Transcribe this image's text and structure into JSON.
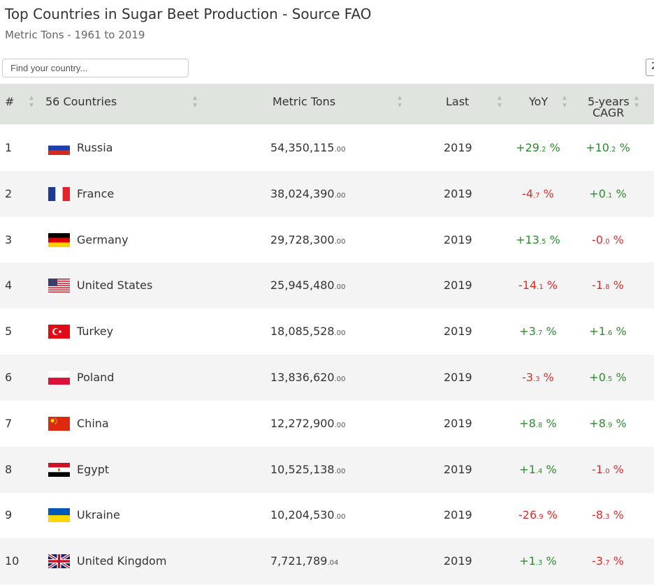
{
  "header": {
    "title": "Top Countries in Sugar Beet Production - Source FAO",
    "subtitle": "Metric Tons - 1961 to 2019"
  },
  "search": {
    "placeholder": "Find your country..."
  },
  "page_size": {
    "value": "2"
  },
  "table": {
    "columns": {
      "rank": "#",
      "country": "56 Countries",
      "tons": "Metric Tons",
      "last": "Last",
      "yoy": "YoY",
      "cagr_line1": "5-years",
      "cagr_line2": "CAGR"
    },
    "rows": [
      {
        "rank": "1",
        "country": "Russia",
        "flag": "russia-flag",
        "tons_int": "54,350,115",
        "tons_dec": ".00",
        "last": "2019",
        "yoy_int": "+29",
        "yoy_dec": ".2",
        "yoy_unit": " %",
        "yoy_sign": "pos",
        "cagr_int": "+10",
        "cagr_dec": ".2",
        "cagr_unit": " %",
        "cagr_sign": "pos"
      },
      {
        "rank": "2",
        "country": "France",
        "flag": "france-flag",
        "tons_int": "38,024,390",
        "tons_dec": ".00",
        "last": "2019",
        "yoy_int": "-4",
        "yoy_dec": ".7",
        "yoy_unit": " %",
        "yoy_sign": "neg",
        "cagr_int": "+0",
        "cagr_dec": ".1",
        "cagr_unit": " %",
        "cagr_sign": "pos"
      },
      {
        "rank": "3",
        "country": "Germany",
        "flag": "germany-flag",
        "tons_int": "29,728,300",
        "tons_dec": ".00",
        "last": "2019",
        "yoy_int": "+13",
        "yoy_dec": ".5",
        "yoy_unit": " %",
        "yoy_sign": "pos",
        "cagr_int": "-0",
        "cagr_dec": ".0",
        "cagr_unit": " %",
        "cagr_sign": "neg"
      },
      {
        "rank": "4",
        "country": "United States",
        "flag": "usa-flag",
        "tons_int": "25,945,480",
        "tons_dec": ".00",
        "last": "2019",
        "yoy_int": "-14",
        "yoy_dec": ".1",
        "yoy_unit": " %",
        "yoy_sign": "neg",
        "cagr_int": "-1",
        "cagr_dec": ".8",
        "cagr_unit": " %",
        "cagr_sign": "neg"
      },
      {
        "rank": "5",
        "country": "Turkey",
        "flag": "turkey-flag",
        "tons_int": "18,085,528",
        "tons_dec": ".00",
        "last": "2019",
        "yoy_int": "+3",
        "yoy_dec": ".7",
        "yoy_unit": " %",
        "yoy_sign": "pos",
        "cagr_int": "+1",
        "cagr_dec": ".6",
        "cagr_unit": " %",
        "cagr_sign": "pos"
      },
      {
        "rank": "6",
        "country": "Poland",
        "flag": "poland-flag",
        "tons_int": "13,836,620",
        "tons_dec": ".00",
        "last": "2019",
        "yoy_int": "-3",
        "yoy_dec": ".3",
        "yoy_unit": " %",
        "yoy_sign": "neg",
        "cagr_int": "+0",
        "cagr_dec": ".5",
        "cagr_unit": " %",
        "cagr_sign": "pos"
      },
      {
        "rank": "7",
        "country": "China",
        "flag": "china-flag",
        "tons_int": "12,272,900",
        "tons_dec": ".00",
        "last": "2019",
        "yoy_int": "+8",
        "yoy_dec": ".8",
        "yoy_unit": " %",
        "yoy_sign": "pos",
        "cagr_int": "+8",
        "cagr_dec": ".9",
        "cagr_unit": " %",
        "cagr_sign": "pos"
      },
      {
        "rank": "8",
        "country": "Egypt",
        "flag": "egypt-flag",
        "tons_int": "10,525,138",
        "tons_dec": ".00",
        "last": "2019",
        "yoy_int": "+1",
        "yoy_dec": ".4",
        "yoy_unit": " %",
        "yoy_sign": "pos",
        "cagr_int": "-1",
        "cagr_dec": ".0",
        "cagr_unit": " %",
        "cagr_sign": "neg"
      },
      {
        "rank": "9",
        "country": "Ukraine",
        "flag": "ukraine-flag",
        "tons_int": "10,204,530",
        "tons_dec": ".00",
        "last": "2019",
        "yoy_int": "-26",
        "yoy_dec": ".9",
        "yoy_unit": " %",
        "yoy_sign": "neg",
        "cagr_int": "-8",
        "cagr_dec": ".3",
        "cagr_unit": " %",
        "cagr_sign": "neg"
      },
      {
        "rank": "10",
        "country": "United Kingdom",
        "flag": "uk-flag",
        "tons_int": "7,721,789",
        "tons_dec": ".04",
        "last": "2019",
        "yoy_int": "+1",
        "yoy_dec": ".3",
        "yoy_unit": " %",
        "yoy_sign": "pos",
        "cagr_int": "-3",
        "cagr_dec": ".7",
        "cagr_unit": " %",
        "cagr_sign": "neg"
      }
    ]
  },
  "colors": {
    "positive": "#2e8b2e",
    "negative": "#e02b2b",
    "header_bg": "#dfe4df",
    "row_alt_bg": "#f4f4f4"
  }
}
